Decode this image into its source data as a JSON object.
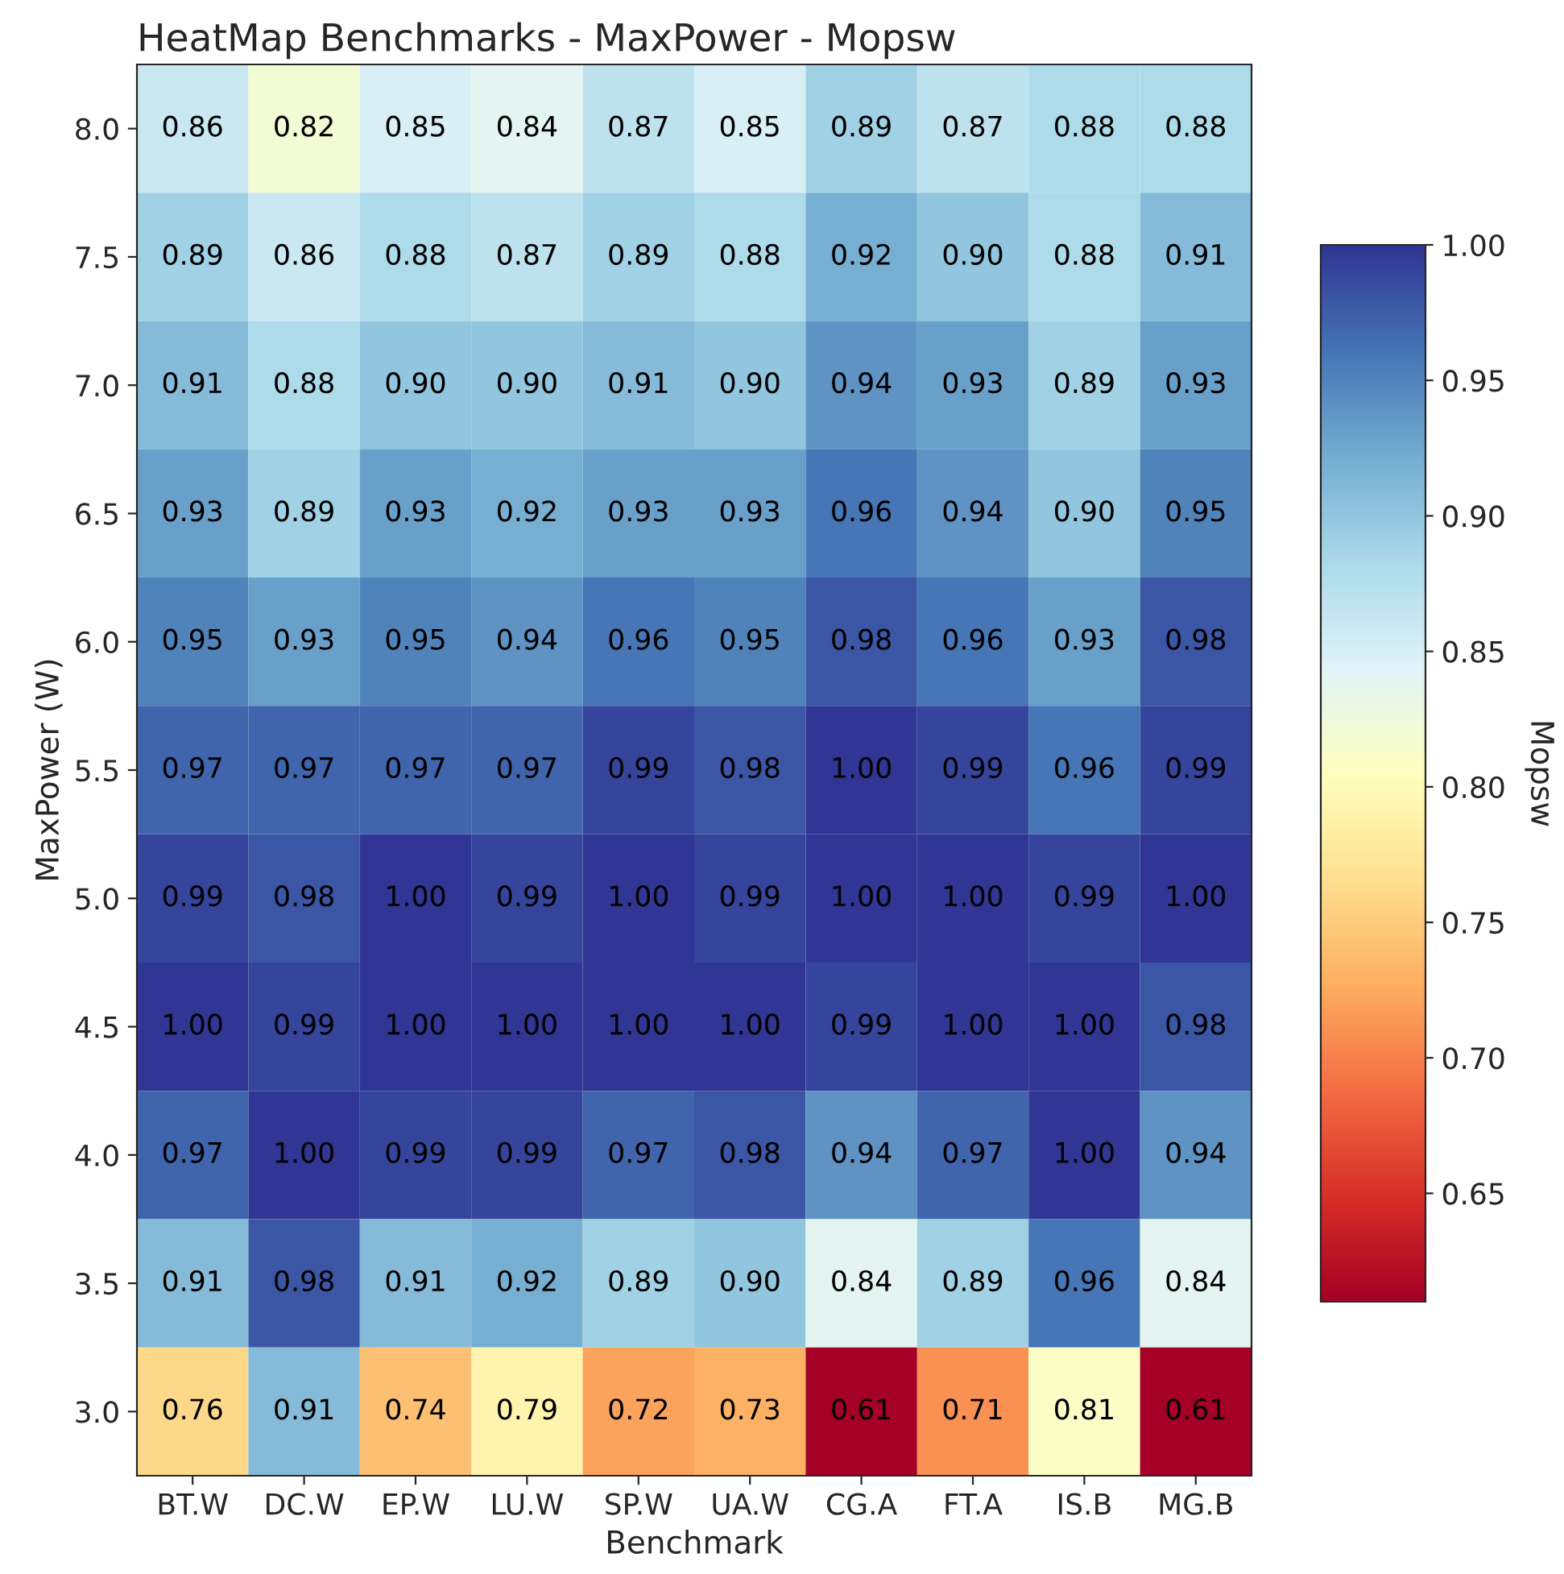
{
  "chart_data": {
    "type": "heatmap",
    "title": "HeatMap Benchmarks - MaxPower - Mopsw",
    "xlabel": "Benchmark",
    "ylabel": "MaxPower (W)",
    "clabel": "Mopsw",
    "categories": [
      "BT.W",
      "DC.W",
      "EP.W",
      "LU.W",
      "SP.W",
      "UA.W",
      "CG.A",
      "FT.A",
      "IS.B",
      "MG.B"
    ],
    "y_categories": [
      "8.0",
      "7.5",
      "7.0",
      "6.5",
      "6.0",
      "5.5",
      "5.0",
      "4.5",
      "4.0",
      "3.5",
      "3.0"
    ],
    "cells": [
      [
        0.86,
        0.82,
        0.85,
        0.84,
        0.87,
        0.85,
        0.89,
        0.87,
        0.88,
        0.88
      ],
      [
        0.89,
        0.86,
        0.88,
        0.87,
        0.89,
        0.88,
        0.92,
        0.9,
        0.88,
        0.91
      ],
      [
        0.91,
        0.88,
        0.9,
        0.9,
        0.91,
        0.9,
        0.94,
        0.93,
        0.89,
        0.93
      ],
      [
        0.93,
        0.89,
        0.93,
        0.92,
        0.93,
        0.93,
        0.96,
        0.94,
        0.9,
        0.95
      ],
      [
        0.95,
        0.93,
        0.95,
        0.94,
        0.96,
        0.95,
        0.98,
        0.96,
        0.93,
        0.98
      ],
      [
        0.97,
        0.97,
        0.97,
        0.97,
        0.99,
        0.98,
        1.0,
        0.99,
        0.96,
        0.99
      ],
      [
        0.99,
        0.98,
        1.0,
        0.99,
        1.0,
        0.99,
        1.0,
        1.0,
        0.99,
        1.0
      ],
      [
        1.0,
        0.99,
        1.0,
        1.0,
        1.0,
        1.0,
        0.99,
        1.0,
        1.0,
        0.98
      ],
      [
        0.97,
        1.0,
        0.99,
        0.99,
        0.97,
        0.98,
        0.94,
        0.97,
        1.0,
        0.94
      ],
      [
        0.91,
        0.98,
        0.91,
        0.92,
        0.89,
        0.9,
        0.84,
        0.89,
        0.96,
        0.84
      ],
      [
        0.76,
        0.91,
        0.74,
        0.79,
        0.72,
        0.73,
        0.61,
        0.71,
        0.81,
        0.61
      ]
    ],
    "clim": [
      0.61,
      1.0
    ],
    "cticks": [
      {
        "value": 0.65,
        "label": "0.65"
      },
      {
        "value": 0.7,
        "label": "0.70"
      },
      {
        "value": 0.75,
        "label": "0.75"
      },
      {
        "value": 0.8,
        "label": "0.80"
      },
      {
        "value": 0.85,
        "label": "0.85"
      },
      {
        "value": 0.9,
        "label": "0.90"
      },
      {
        "value": 0.95,
        "label": "0.95"
      },
      {
        "value": 1.0,
        "label": "1.00"
      }
    ],
    "cell_labels": [
      [
        "0.86",
        "0.82",
        "0.85",
        "0.84",
        "0.87",
        "0.85",
        "0.89",
        "0.87",
        "0.88",
        "0.88"
      ],
      [
        "0.89",
        "0.86",
        "0.88",
        "0.87",
        "0.89",
        "0.88",
        "0.92",
        "0.90",
        "0.88",
        "0.91"
      ],
      [
        "0.91",
        "0.88",
        "0.90",
        "0.90",
        "0.91",
        "0.90",
        "0.94",
        "0.93",
        "0.89",
        "0.93"
      ],
      [
        "0.93",
        "0.89",
        "0.93",
        "0.92",
        "0.93",
        "0.93",
        "0.96",
        "0.94",
        "0.90",
        "0.95"
      ],
      [
        "0.95",
        "0.93",
        "0.95",
        "0.94",
        "0.96",
        "0.95",
        "0.98",
        "0.96",
        "0.93",
        "0.98"
      ],
      [
        "0.97",
        "0.97",
        "0.97",
        "0.97",
        "0.99",
        "0.98",
        "1.00",
        "0.99",
        "0.96",
        "0.99"
      ],
      [
        "0.99",
        "0.98",
        "1.00",
        "0.99",
        "1.00",
        "0.99",
        "1.00",
        "1.00",
        "0.99",
        "1.00"
      ],
      [
        "1.00",
        "0.99",
        "1.00",
        "1.00",
        "1.00",
        "1.00",
        "0.99",
        "1.00",
        "1.00",
        "0.98"
      ],
      [
        "0.97",
        "1.00",
        "0.99",
        "0.99",
        "0.97",
        "0.98",
        "0.94",
        "0.97",
        "1.00",
        "0.94"
      ],
      [
        "0.91",
        "0.98",
        "0.91",
        "0.92",
        "0.89",
        "0.90",
        "0.84",
        "0.89",
        "0.96",
        "0.84"
      ],
      [
        "0.76",
        "0.91",
        "0.74",
        "0.79",
        "0.72",
        "0.73",
        "0.61",
        "0.71",
        "0.81",
        "0.61"
      ]
    ]
  }
}
